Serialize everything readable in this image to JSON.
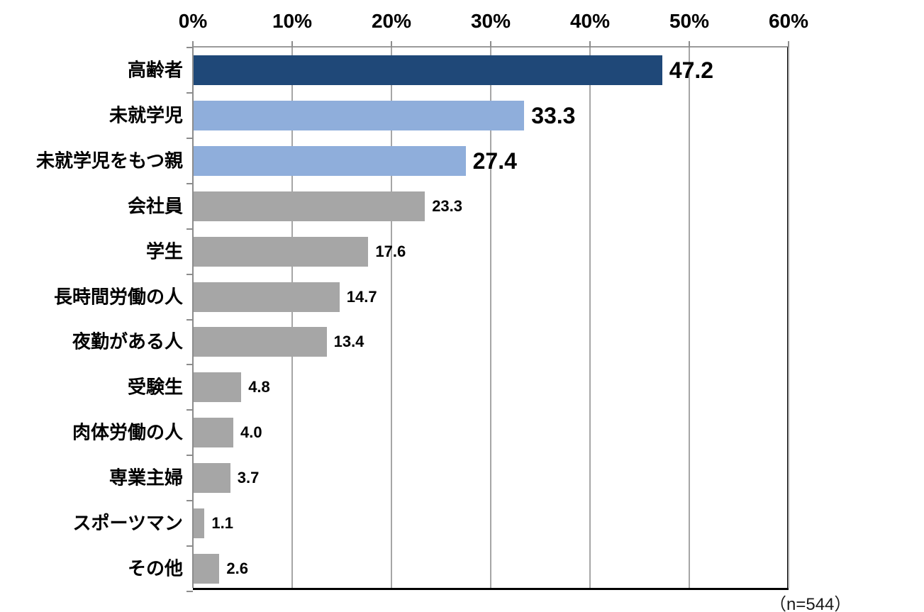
{
  "chart_data": {
    "type": "bar",
    "orientation": "horizontal",
    "title": "",
    "xlabel": "",
    "ylabel": "",
    "xlim": [
      0,
      60
    ],
    "grid": true,
    "x_tick_labels": [
      "0%",
      "10%",
      "20%",
      "30%",
      "40%",
      "50%",
      "60%"
    ],
    "x_tick_values": [
      0,
      10,
      20,
      30,
      40,
      50,
      60
    ],
    "categories": [
      "高齢者",
      "未就学児",
      "未就学児をもつ親",
      "会社員",
      "学生",
      "長時間労働の人",
      "夜勤がある人",
      "受験生",
      "肉体労働の人",
      "専業主婦",
      "スポーツマン",
      "その他"
    ],
    "values": [
      47.2,
      33.3,
      27.4,
      23.3,
      17.6,
      14.7,
      13.4,
      4.8,
      4.0,
      3.7,
      1.1,
      2.6
    ],
    "value_labels": [
      "47.2",
      "33.3",
      "27.4",
      "23.3",
      "17.6",
      "14.7",
      "13.4",
      "4.8",
      "4.0",
      "3.7",
      "1.1",
      "2.6"
    ],
    "bar_colors": [
      "#1F4878",
      "#8FAEDB",
      "#8FAEDB",
      "#A6A6A6",
      "#A6A6A6",
      "#A6A6A6",
      "#A6A6A6",
      "#A6A6A6",
      "#A6A6A6",
      "#A6A6A6",
      "#A6A6A6",
      "#A6A6A6"
    ],
    "emphasized_value_label": [
      true,
      true,
      true,
      false,
      false,
      false,
      false,
      false,
      false,
      false,
      false,
      false
    ],
    "footnote": "（n=544）"
  },
  "colors": {
    "bar_dark_navy": "#1F4878",
    "bar_light_blue": "#8FAEDB",
    "bar_gray": "#A6A6A6",
    "gridline": "#A6A6A6",
    "axis_gray": "#8C8C8C",
    "axis_black": "#000000",
    "text": "#000000",
    "background": "#FFFFFF"
  }
}
